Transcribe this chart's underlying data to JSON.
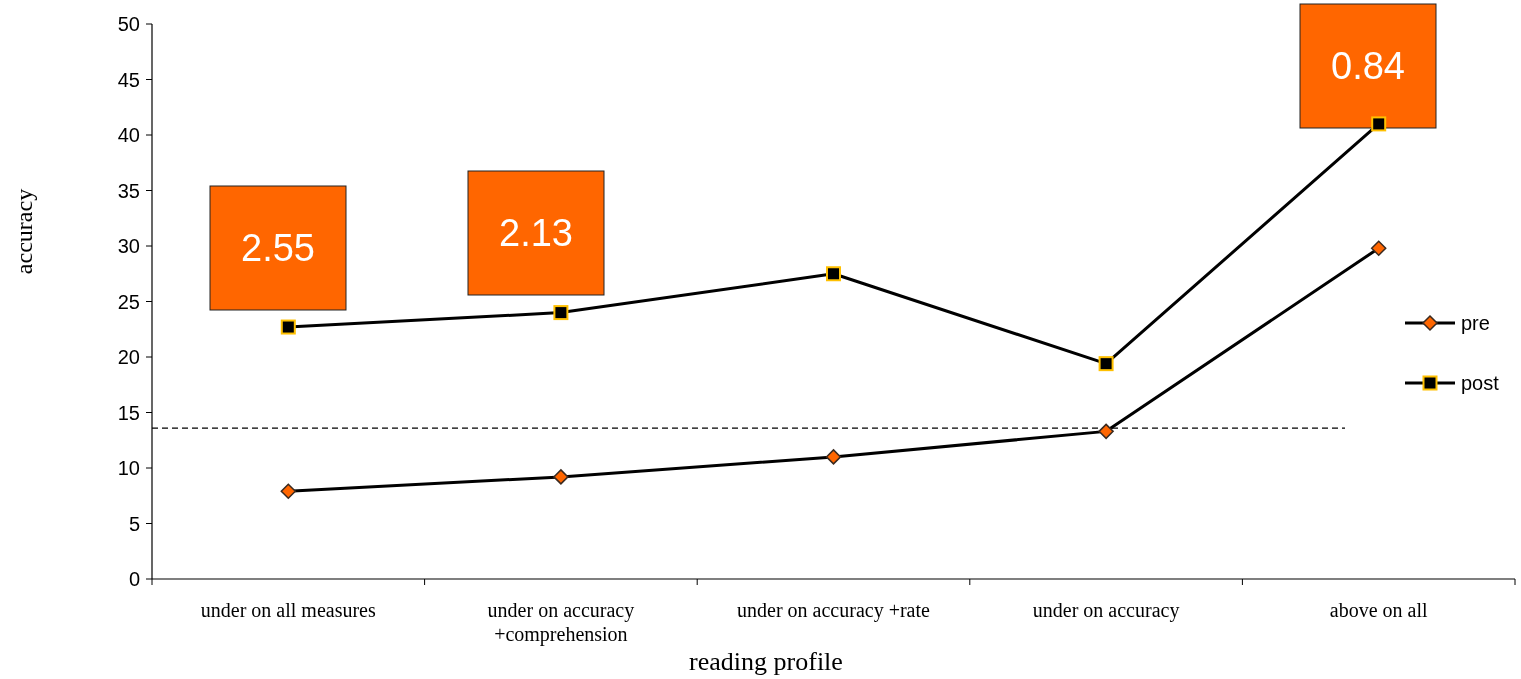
{
  "chart_data": {
    "type": "line",
    "xlabel": "reading profile",
    "ylabel": "accuracy",
    "categories": [
      "under on all measures",
      "under on accuracy +comprehension",
      "under on accuracy +rate",
      "under on accuracy",
      "above on all"
    ],
    "series": [
      {
        "name": "pre",
        "color": "#000000",
        "marker": "diamond",
        "values": [
          7.9,
          9.2,
          11.0,
          13.3,
          29.8
        ]
      },
      {
        "name": "post",
        "color": "#000000",
        "marker": "square",
        "values": [
          22.7,
          24.0,
          27.5,
          19.4,
          41
        ]
      }
    ],
    "ylim": [
      0,
      50
    ],
    "yticks": [
      0,
      5,
      10,
      15,
      20,
      25,
      30,
      35,
      40,
      45,
      50
    ],
    "grid": false,
    "legend": "right",
    "ref_lines": [
      {
        "axis": "y",
        "value": 13.6,
        "line_style": "dashed"
      }
    ],
    "annotations": [
      "2.55",
      "2.13",
      "0.84"
    ]
  }
}
